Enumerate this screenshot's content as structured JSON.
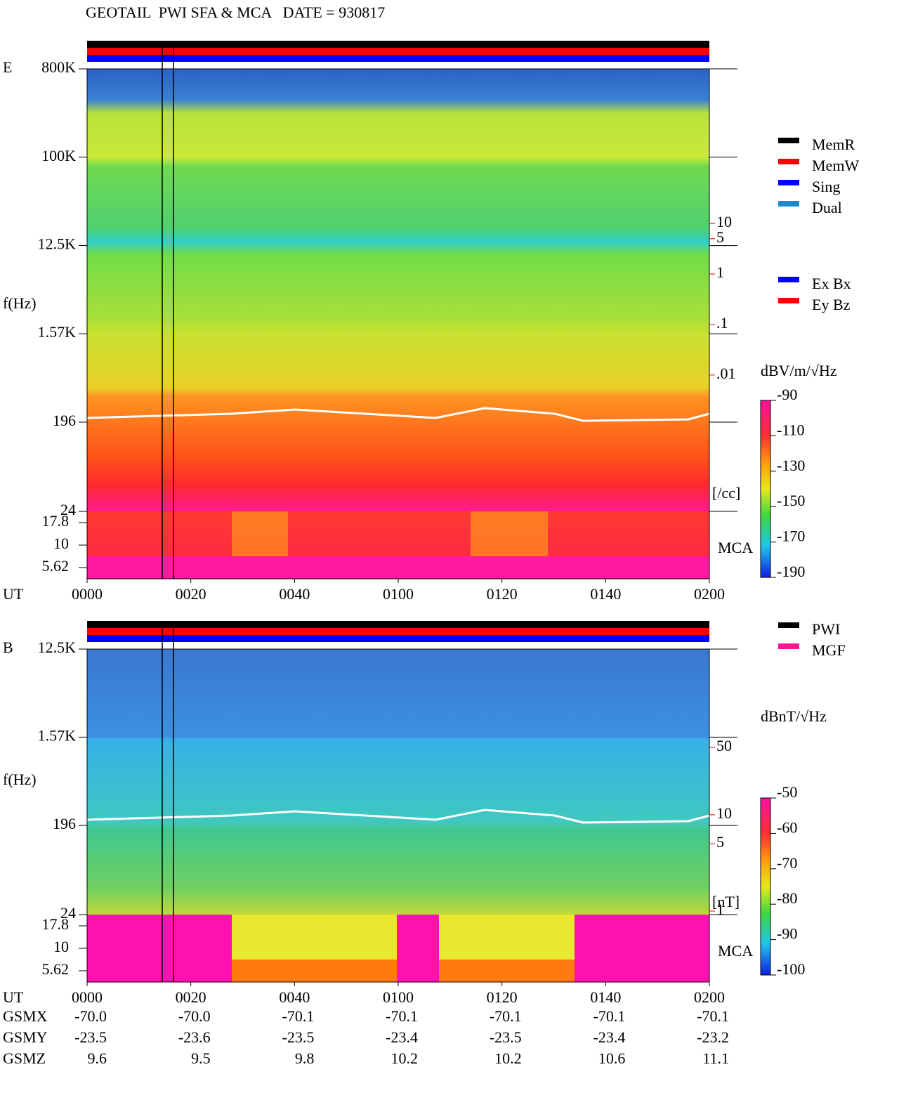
{
  "title": "GEOTAIL  PWI SFA & MCA   DATE = 930817",
  "chart_data": [
    {
      "type": "spectrogram",
      "panel_label": "E",
      "y_label": "f(Hz)",
      "x_label": "UT",
      "xlim": [
        0,
        120
      ],
      "xticks": [
        {
          "value": 0,
          "label": "0000"
        },
        {
          "value": 20,
          "label": "0020"
        },
        {
          "value": 40,
          "label": "0040"
        },
        {
          "value": 60,
          "label": "0100"
        },
        {
          "value": 80,
          "label": "0120"
        },
        {
          "value": 100,
          "label": "0140"
        },
        {
          "value": 120,
          "label": "0200"
        }
      ],
      "log_y": true,
      "ylim": [
        24,
        800000
      ],
      "yticks": [
        {
          "value": 800000,
          "label": "800K"
        },
        {
          "value": 100000,
          "label": "100K"
        },
        {
          "value": 12500,
          "label": "12.5K"
        },
        {
          "value": 1570,
          "label": "1.57K"
        },
        196,
        24
      ],
      "mca_channels": [
        17.8,
        10,
        5.62
      ],
      "mca_label": "MCA",
      "y2lim": [
        2e-05,
        11500
      ],
      "y2ticks": [
        10,
        5,
        1,
        {
          "value": 0.1,
          "label": ".1"
        },
        {
          "value": 0.01,
          "label": ".01"
        }
      ],
      "y2_label": "[/cc]",
      "y2_color": "#ff0000",
      "colorbar": {
        "label": "dBV/m/√Hz",
        "lim": [
          -190,
          -90
        ],
        "ticks": [
          -90,
          -110,
          -130,
          -150,
          -170,
          -190
        ]
      },
      "legends": [
        [
          {
            "name": "MemR",
            "color": "#000000"
          },
          {
            "name": "MemW",
            "color": "#ff0000"
          },
          {
            "name": "Sing",
            "color": "#0000ff"
          },
          {
            "name": "Dual",
            "color": "#1e88c8"
          }
        ],
        [
          {
            "name": "Ex Bx",
            "color": "#0000ff"
          },
          {
            "name": "Ey Bz",
            "color": "#ff0000"
          }
        ]
      ]
    },
    {
      "type": "spectrogram",
      "panel_label": "B",
      "y_label": "f(Hz)",
      "x_label": "UT",
      "xlim": [
        0,
        120
      ],
      "xticks": [
        {
          "value": 0,
          "label": "0000"
        },
        {
          "value": 20,
          "label": "0020"
        },
        {
          "value": 40,
          "label": "0040"
        },
        {
          "value": 60,
          "label": "0100"
        },
        {
          "value": 80,
          "label": "0120"
        },
        {
          "value": 100,
          "label": "0140"
        },
        {
          "value": 120,
          "label": "0200"
        }
      ],
      "log_y": true,
      "ylim": [
        24,
        12500
      ],
      "yticks": [
        {
          "value": 12500,
          "label": "12.5K"
        },
        {
          "value": 1570,
          "label": "1.57K"
        },
        196,
        24
      ],
      "mca_channels": [
        17.8,
        10,
        5.62
      ],
      "mca_label": "MCA",
      "y2lim": [
        0.92,
        525
      ],
      "y2ticks": [
        50,
        10,
        5,
        1
      ],
      "y2_label": "[nT]",
      "y2_color": "#ff0000",
      "colorbar": {
        "label": "dBnT/√Hz",
        "lim": [
          -100,
          -50
        ],
        "ticks": [
          -50,
          -60,
          -70,
          -80,
          -90,
          -100
        ]
      },
      "legends": [
        [
          {
            "name": "PWI",
            "color": "#000000"
          },
          {
            "name": "MGF",
            "color": "#ff1493"
          }
        ]
      ]
    }
  ],
  "orbit": {
    "labels": [
      "GSMX",
      "GSMY",
      "GSMZ"
    ],
    "rows": [
      [
        "-70.0",
        "-70.0",
        "-70.1",
        "-70.1",
        "-70.1",
        "-70.1",
        "-70.1"
      ],
      [
        "-23.5",
        "-23.6",
        "-23.5",
        "-23.4",
        "-23.5",
        "-23.4",
        "-23.2"
      ],
      [
        "9.6",
        "9.5",
        "9.8",
        "10.2",
        "10.2",
        "10.6",
        "11.1"
      ]
    ]
  }
}
